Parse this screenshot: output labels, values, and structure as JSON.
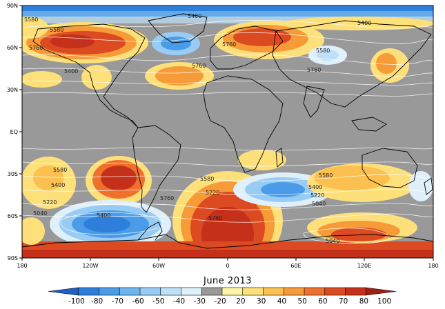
{
  "map": {
    "title": "June 2013",
    "lat_labels": [
      "90N",
      "60N",
      "30N",
      "EQ",
      "30S",
      "60S",
      "90S"
    ],
    "lon_labels": [
      "180",
      "120W",
      "60W",
      "0",
      "60E",
      "120E",
      "180"
    ],
    "contour_labels": [
      "5400",
      "5580",
      "5400",
      "5580",
      "5760",
      "5760",
      "5580",
      "5760",
      "5400",
      "5760",
      "5580",
      "5400",
      "5220",
      "5040",
      "5400",
      "5760",
      "5580",
      "5220",
      "5760",
      "5580",
      "5400",
      "5220",
      "5040",
      "5040"
    ],
    "colorbar": {
      "levels": [
        "-100",
        "-80",
        "-70",
        "-60",
        "-50",
        "-40",
        "-30",
        "-20",
        "20",
        "30",
        "40",
        "50",
        "60",
        "70",
        "80",
        "100"
      ],
      "colors": [
        "#1e5fc8",
        "#2e7fdc",
        "#4a9ce8",
        "#6fb6ef",
        "#98ccf4",
        "#bfe0f8",
        "#dff0fb",
        "#999999",
        "#fff5a8",
        "#fde07a",
        "#fbc050",
        "#f79a38",
        "#ef702c",
        "#dc4a22",
        "#c4301a",
        "#a01e12"
      ]
    }
  }
}
